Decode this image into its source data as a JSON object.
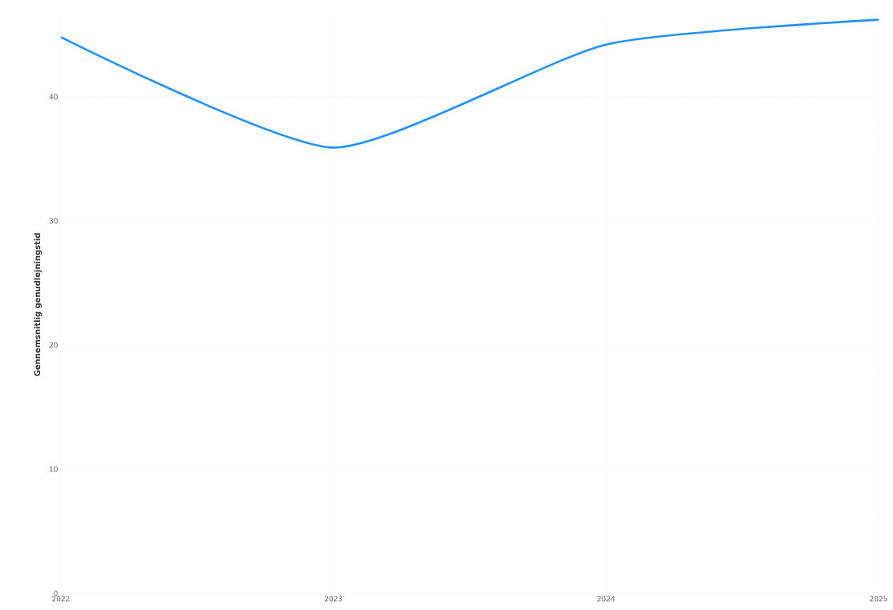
{
  "chart_data": {
    "type": "line",
    "ylabel": "Gennemsnitlig genudlejningstid",
    "x": [
      2022,
      2023,
      2024,
      2025
    ],
    "series": [
      {
        "color": "#1e90ff",
        "values": [
          44.8,
          35.9,
          44.2,
          46.2
        ]
      }
    ],
    "xlim": [
      2022,
      2025
    ],
    "xticks": [
      2022,
      2023,
      2024,
      2025
    ],
    "ylim": [
      0,
      46.5
    ],
    "yticks": [
      0,
      10,
      20,
      30,
      40
    ],
    "grid": true,
    "marker": "none",
    "line_style": "solid"
  }
}
